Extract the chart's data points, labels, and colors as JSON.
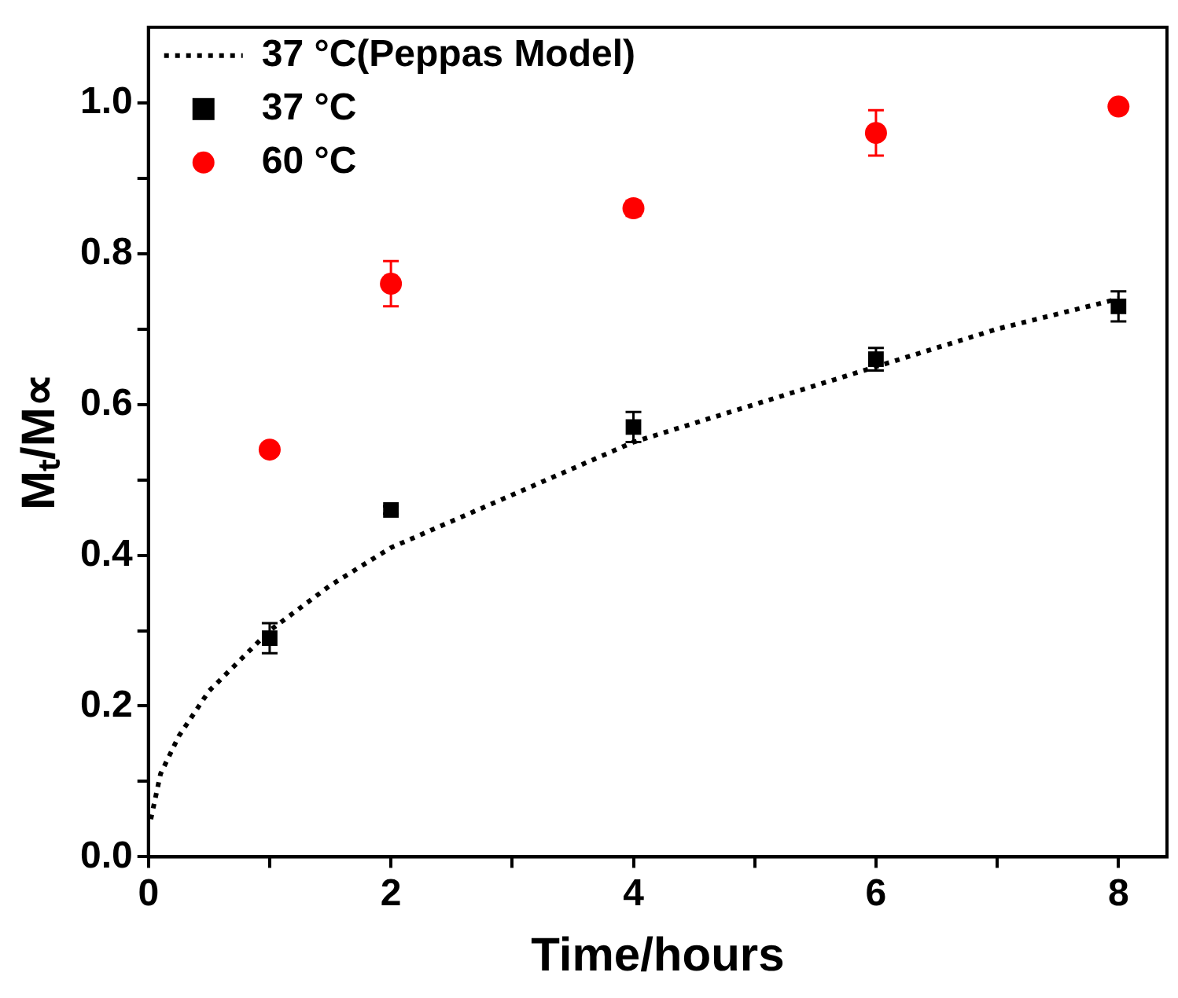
{
  "chart_data": {
    "type": "scatter",
    "xlabel": "Time/hours",
    "ylabel": "Mₜ/M∝",
    "xlim": [
      0,
      8.4
    ],
    "ylim": [
      0,
      1.1
    ],
    "xticks": [
      0,
      {
        "value": 1,
        "label": null
      },
      2,
      {
        "value": 3,
        "label": null
      },
      4,
      {
        "value": 5,
        "label": null
      },
      6,
      {
        "value": 7,
        "label": null
      },
      8
    ],
    "yticks": [
      {
        "value": 0,
        "label": "0.0"
      },
      {
        "value": 0.1,
        "label": null
      },
      {
        "value": 0.2,
        "label": "0.2"
      },
      {
        "value": 0.3,
        "label": null
      },
      {
        "value": 0.4,
        "label": "0.4"
      },
      {
        "value": 0.5,
        "label": null
      },
      {
        "value": 0.6,
        "label": "0.6"
      },
      {
        "value": 0.7,
        "label": null
      },
      {
        "value": 0.8,
        "label": "0.8"
      },
      {
        "value": 0.9,
        "label": null
      },
      {
        "value": 1,
        "label": "1.0"
      }
    ],
    "legend": "top left",
    "grid": false,
    "series": [
      {
        "name": "37 °C(Peppas Model)",
        "type": "line",
        "color": "#000000",
        "marker": "none",
        "line_style": "dotted",
        "x": [
          0.02,
          0.1,
          0.25,
          0.5,
          1,
          1.5,
          2,
          3,
          4,
          5,
          6,
          7,
          8
        ],
        "values": [
          0.05,
          0.11,
          0.16,
          0.22,
          0.3,
          0.36,
          0.41,
          0.48,
          0.55,
          0.6,
          0.65,
          0.7,
          0.74
        ]
      },
      {
        "name": "37 °C",
        "type": "scatter",
        "color": "#000000",
        "marker": "square",
        "x": [
          1,
          2,
          4,
          6,
          8
        ],
        "values": [
          0.29,
          0.46,
          0.57,
          0.66,
          0.73
        ],
        "errors": [
          0.02,
          0.005,
          0.02,
          0.015,
          0.02
        ]
      },
      {
        "name": "60 °C",
        "type": "scatter",
        "color": "#ff0000",
        "marker": "circle",
        "x": [
          1,
          2,
          4,
          6,
          8
        ],
        "values": [
          0.54,
          0.76,
          0.86,
          0.96,
          0.995
        ],
        "errors": [
          0.005,
          0.03,
          0.01,
          0.03,
          0.005
        ]
      }
    ]
  }
}
